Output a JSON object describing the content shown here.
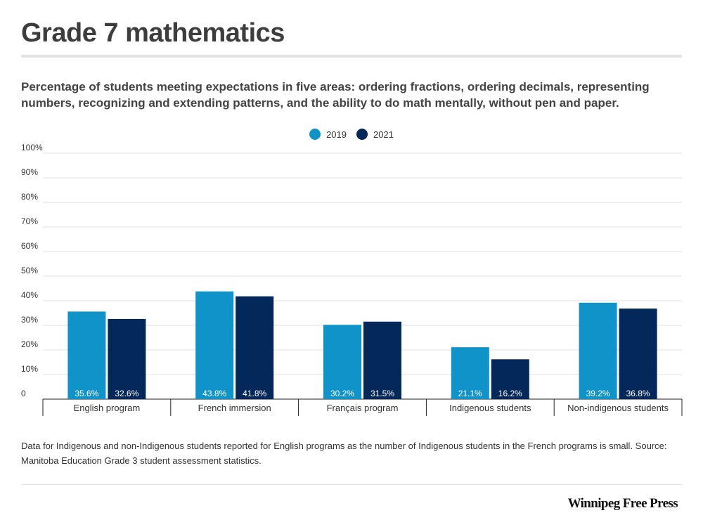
{
  "title": "Grade 7 mathematics",
  "subtitle": "Percentage of students meeting expectations in five areas: ordering fractions, ordering decimals, representing numbers, recognizing and extending patterns, and the ability to do math mentally, without pen and paper.",
  "note": "Data for Indigenous and non-Indigenous students reported for English programs as the number of Indigenous students in the French programs is small.  Source: Manitoba Education Grade 3 student assessment statistics.",
  "brand": "Winnipeg Free Press",
  "chart_data": {
    "type": "bar",
    "categories": [
      "English program",
      "French immersion",
      "Français program",
      "Indigenous students",
      "Non-indigenous students"
    ],
    "series": [
      {
        "name": "2019",
        "color": "#0f93c9",
        "values": [
          35.6,
          43.8,
          30.2,
          21.1,
          39.2
        ],
        "labels": [
          "35.6%",
          "43.8%",
          "30.2%",
          "21.1%",
          "39.2%"
        ]
      },
      {
        "name": "2021",
        "color": "#04285a",
        "values": [
          32.6,
          41.8,
          31.5,
          16.2,
          36.8
        ],
        "labels": [
          "32.6%",
          "41.8%",
          "31.5%",
          "16.2%",
          "36.8%"
        ]
      }
    ],
    "ylim": [
      0,
      100
    ],
    "yticks": [
      0,
      10,
      20,
      30,
      40,
      50,
      60,
      70,
      80,
      90,
      100
    ],
    "ytick_labels": [
      "0",
      "10%",
      "20%",
      "30%",
      "40%",
      "50%",
      "60%",
      "70%",
      "80%",
      "90%",
      "100%"
    ],
    "grid": true,
    "legend": "top-center",
    "xlabel": "",
    "ylabel": ""
  }
}
